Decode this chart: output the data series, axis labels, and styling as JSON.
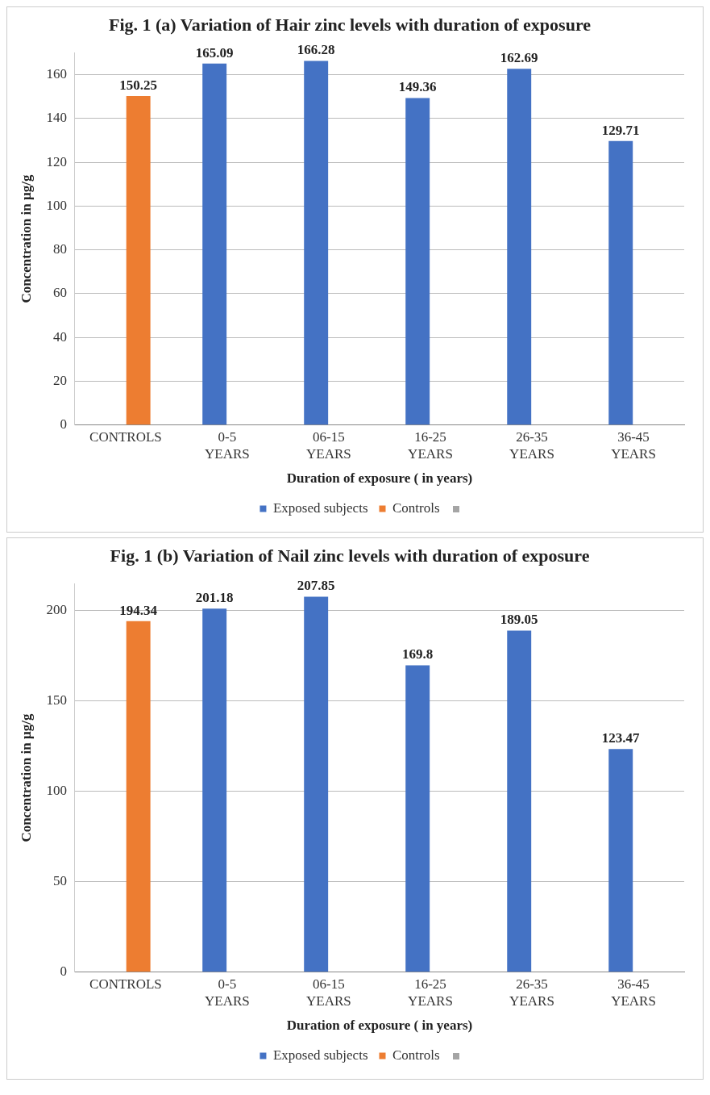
{
  "chart_data": [
    {
      "type": "bar",
      "title": "Fig. 1 (a) Variation of Hair zinc levels with duration of exposure",
      "xlabel": "Duration of exposure ( in years)",
      "ylabel": "Concentration in µg/g",
      "categories": [
        "CONTROLS",
        "0-5 YEARS",
        "06-15 YEARS",
        "16-25 YEARS",
        "26-35 YEARS",
        "36-45 YEARS"
      ],
      "series": [
        {
          "name": "Exposed subjects",
          "color": "#4472c4",
          "values": [
            null,
            165.09,
            166.28,
            149.36,
            162.69,
            129.71
          ]
        },
        {
          "name": "Controls",
          "color": "#ed7d31",
          "values": [
            150.25,
            null,
            null,
            null,
            null,
            null
          ]
        }
      ],
      "ylim": [
        0,
        170
      ],
      "yticks": [
        0,
        20,
        40,
        60,
        80,
        100,
        120,
        140,
        160
      ],
      "grid": "y",
      "legend": "bottom",
      "data_labels": true
    },
    {
      "type": "bar",
      "title": "Fig. 1 (b) Variation of Nail zinc levels with duration of exposure",
      "xlabel": "Duration of exposure ( in years)",
      "ylabel": "Concentration in µg/g",
      "categories": [
        "CONTROLS",
        "0-5 YEARS",
        "06-15 YEARS",
        "16-25 YEARS",
        "26-35 YEARS",
        "36-45 YEARS"
      ],
      "series": [
        {
          "name": "Exposed subjects",
          "color": "#4472c4",
          "values": [
            null,
            201.18,
            207.85,
            169.8,
            189.05,
            123.47
          ]
        },
        {
          "name": "Controls",
          "color": "#ed7d31",
          "values": [
            194.34,
            null,
            null,
            null,
            null,
            null
          ]
        }
      ],
      "ylim": [
        0,
        215
      ],
      "yticks": [
        0,
        50,
        100,
        150,
        200
      ],
      "grid": "y",
      "legend": "bottom",
      "data_labels": true
    }
  ]
}
